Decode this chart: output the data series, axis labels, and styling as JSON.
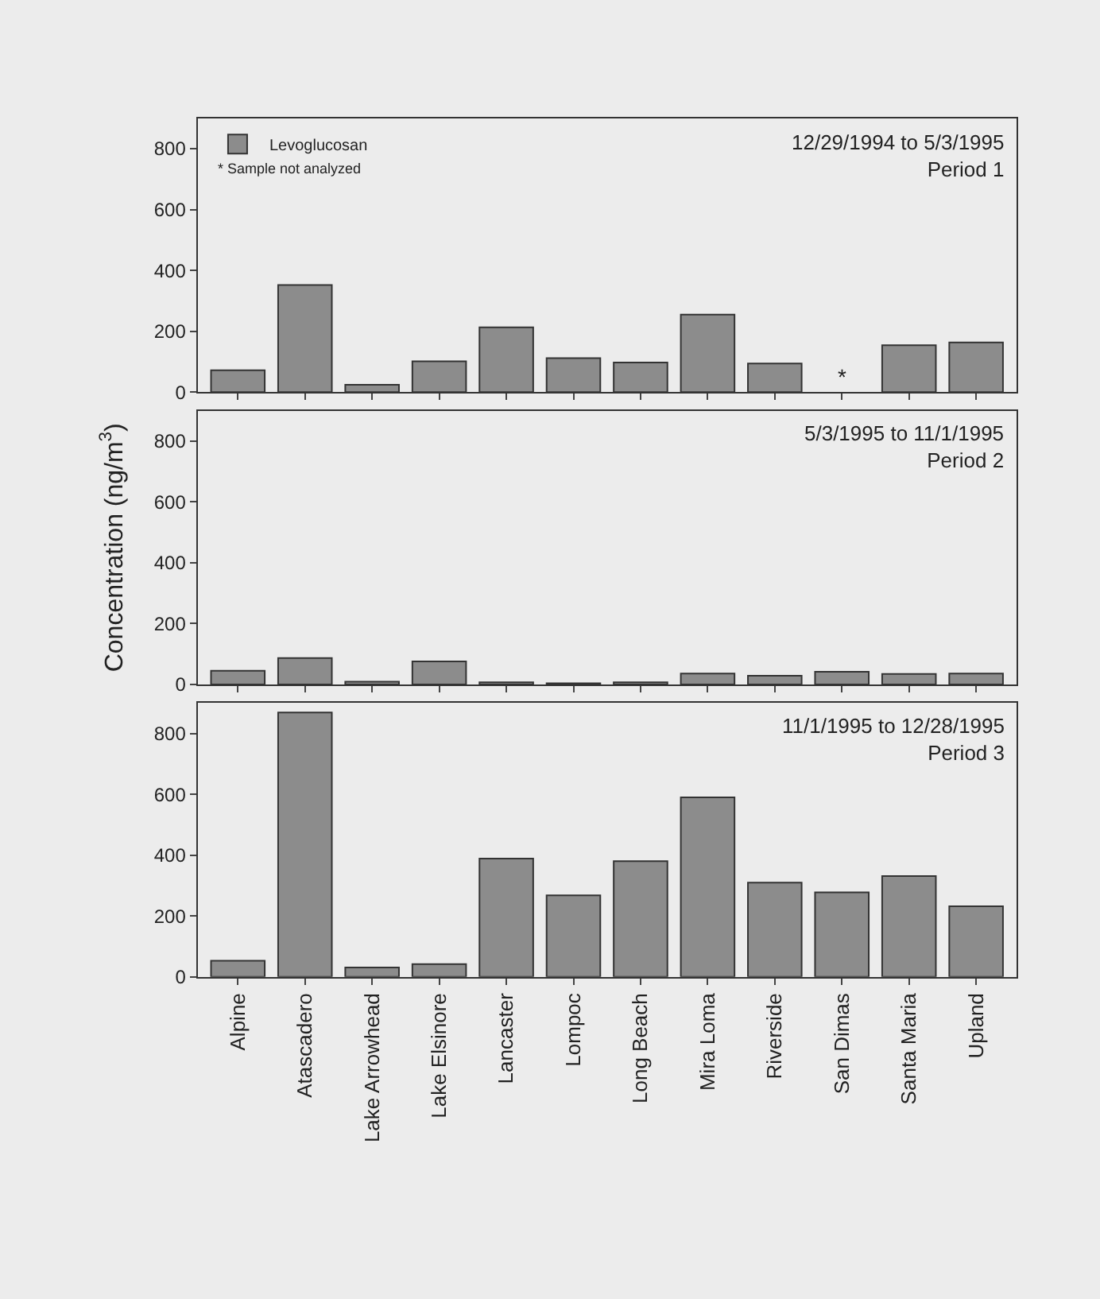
{
  "chart_data": [
    {
      "type": "bar",
      "categories": [
        null,
        null,
        null,
        null,
        null,
        null,
        null,
        null,
        null,
        null,
        null,
        null
      ],
      "series": [
        {
          "name": "Levoglucosan",
          "color": "#8c8c8c",
          "values": [
            72,
            352,
            24,
            101,
            213,
            112,
            97,
            255,
            94,
            null,
            154,
            163
          ]
        }
      ],
      "ylim": [
        0,
        900
      ],
      "yticks": [
        0,
        200,
        400,
        600,
        800
      ],
      "tick_labels": "y",
      "legend": "top left",
      "annotations": [
        "12/29/1994 to 5/3/1995\nPeriod 1",
        "* Sample not analyzed",
        "*"
      ]
    },
    {
      "type": "bar",
      "categories": [
        null,
        null,
        null,
        null,
        null,
        null,
        null,
        null,
        null,
        null,
        null,
        null
      ],
      "values": [
        45,
        87,
        9,
        76,
        7,
        4,
        7,
        36,
        29,
        42,
        35,
        36
      ],
      "color": "#8c8c8c",
      "ylim": [
        0,
        900
      ],
      "yticks": [
        0,
        200,
        400,
        600,
        800
      ],
      "tick_labels": "y",
      "ylabel": "Concentration (ng/m$^{3}$)",
      "annotations": [
        "5/3/1995 to 11/1/1995\nPeriod 2"
      ]
    },
    {
      "type": "bar",
      "categories": [
        "Alpine",
        "Atascadero",
        "Lake Arrowhead",
        "Lake Elsinore",
        "Lancaster",
        "Lompoc",
        "Long Beach",
        "Mira Loma",
        "Riverside",
        "San Dimas",
        "Santa Maria",
        "Upland"
      ],
      "values": [
        53,
        869,
        31,
        42,
        389,
        268,
        380,
        590,
        310,
        278,
        331,
        232
      ],
      "color": "#8c8c8c",
      "ylim": [
        0,
        900
      ],
      "yticks": [
        0,
        200,
        400,
        600,
        800
      ],
      "annotations": [
        "11/1/1995 to 12/28/1995\nPeriod 3"
      ]
    }
  ]
}
